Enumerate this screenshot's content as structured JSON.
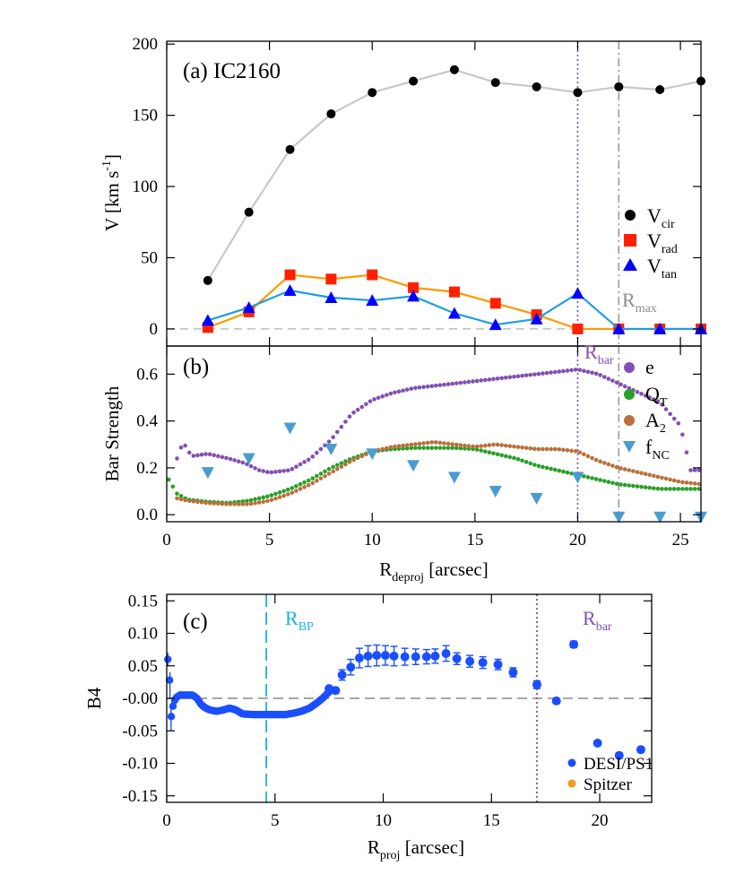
{
  "colors": {
    "black": "#000000",
    "gray_line": "#c8c8c8",
    "red": "#ff2000",
    "orange": "#ff9900",
    "blue": "#0000ff",
    "cyan": "#1e9be8",
    "purple": "#8250b4",
    "green": "#28a028",
    "brown": "#b8703c",
    "skyblue": "#4a9cd0",
    "desi": "#1a4fff",
    "spitzer": "#f29a1c",
    "ref_gray": "#9a9a9a",
    "rbp": "#1ab0e8",
    "rmax_text": "#8c8c8c"
  },
  "chart_data": [
    {
      "type": "line",
      "panel_label": "(a) IC2160",
      "ylabel": {
        "main": "V [km s",
        "sup": "-1",
        "end": "]"
      },
      "xlim": [
        0,
        26
      ],
      "ylim": [
        -12,
        202
      ],
      "yticks": [
        "0",
        "50",
        "100",
        "150",
        "200"
      ],
      "ytick_values": [
        0,
        50,
        100,
        150,
        200
      ],
      "x": [
        2,
        4,
        6,
        8,
        10,
        12,
        14,
        16,
        18,
        20,
        22,
        24,
        26
      ],
      "series": [
        {
          "name": "V",
          "sub": "cir",
          "marker": "circle",
          "values": [
            34,
            82,
            126,
            151,
            166,
            174,
            182,
            173,
            170,
            166,
            170,
            168,
            174
          ]
        },
        {
          "name": "V",
          "sub": "rad",
          "marker": "square",
          "values": [
            1,
            12,
            38,
            35,
            38,
            29,
            26,
            18,
            10,
            0,
            0,
            0,
            0
          ]
        },
        {
          "name": "V",
          "sub": "tan",
          "marker": "triangle",
          "values": [
            6,
            15,
            27,
            22,
            20,
            23,
            11,
            3,
            7,
            25,
            0,
            0,
            0
          ]
        }
      ],
      "vlines": [
        {
          "x": 20,
          "style": "dotted",
          "color": "purple"
        },
        {
          "x": 22,
          "style": "dashdot",
          "color": "ref_gray"
        }
      ],
      "annotation": {
        "main": "R",
        "sub": "max"
      }
    },
    {
      "type": "scatter",
      "panel_label": "(b)",
      "ylabel": "Bar Strength",
      "xlabel": {
        "main": "R",
        "sub": "deproj",
        "end": " [arcsec]"
      },
      "xlim": [
        0,
        26
      ],
      "ylim": [
        -0.03,
        0.72
      ],
      "xticks": [
        "0",
        "5",
        "10",
        "15",
        "20",
        "25"
      ],
      "xtick_values": [
        0,
        5,
        10,
        15,
        20,
        25
      ],
      "yticks": [
        "0.0",
        "0.2",
        "0.4",
        "0.6"
      ],
      "ytick_values": [
        0,
        0.2,
        0.4,
        0.6
      ],
      "legend": [
        {
          "main": "e",
          "sub": ""
        },
        {
          "main": "Q",
          "sub": "T"
        },
        {
          "main": "A",
          "sub": "2"
        },
        {
          "main": "f",
          "sub": "NC"
        }
      ],
      "e_curve": [
        [
          0.5,
          0.24
        ],
        [
          0.8,
          0.31
        ],
        [
          1.2,
          0.25
        ],
        [
          2,
          0.26
        ],
        [
          3,
          0.24
        ],
        [
          3.8,
          0.22
        ],
        [
          4.5,
          0.19
        ],
        [
          5,
          0.18
        ],
        [
          6,
          0.19
        ],
        [
          7,
          0.24
        ],
        [
          8,
          0.32
        ],
        [
          9,
          0.43
        ],
        [
          10,
          0.49
        ],
        [
          11,
          0.52
        ],
        [
          12,
          0.54
        ],
        [
          14,
          0.56
        ],
        [
          16,
          0.58
        ],
        [
          18,
          0.6
        ],
        [
          19,
          0.61
        ],
        [
          20,
          0.62
        ],
        [
          21,
          0.6
        ],
        [
          22,
          0.56
        ],
        [
          23,
          0.52
        ],
        [
          24,
          0.48
        ],
        [
          25,
          0.38
        ],
        [
          25.5,
          0.19
        ],
        [
          26,
          0.19
        ]
      ],
      "qt_curve": [
        [
          0.1,
          0.15
        ],
        [
          0.5,
          0.09
        ],
        [
          1,
          0.065
        ],
        [
          2,
          0.055
        ],
        [
          3,
          0.05
        ],
        [
          4,
          0.06
        ],
        [
          5,
          0.08
        ],
        [
          6,
          0.11
        ],
        [
          7,
          0.15
        ],
        [
          8,
          0.2
        ],
        [
          9,
          0.24
        ],
        [
          10,
          0.27
        ],
        [
          11,
          0.28
        ],
        [
          12,
          0.285
        ],
        [
          13,
          0.285
        ],
        [
          14,
          0.285
        ],
        [
          15,
          0.28
        ],
        [
          16,
          0.26
        ],
        [
          17,
          0.24
        ],
        [
          18,
          0.21
        ],
        [
          19,
          0.19
        ],
        [
          20,
          0.17
        ],
        [
          21,
          0.15
        ],
        [
          22,
          0.13
        ],
        [
          23,
          0.12
        ],
        [
          24,
          0.11
        ],
        [
          25,
          0.11
        ],
        [
          26,
          0.11
        ]
      ],
      "a2_curve": [
        [
          0.5,
          0.07
        ],
        [
          1,
          0.06
        ],
        [
          2,
          0.05
        ],
        [
          3,
          0.045
        ],
        [
          4,
          0.045
        ],
        [
          5,
          0.06
        ],
        [
          6,
          0.09
        ],
        [
          7,
          0.13
        ],
        [
          8,
          0.18
        ],
        [
          9,
          0.23
        ],
        [
          10,
          0.27
        ],
        [
          11,
          0.29
        ],
        [
          12,
          0.3
        ],
        [
          13,
          0.31
        ],
        [
          14,
          0.3
        ],
        [
          15,
          0.29
        ],
        [
          16,
          0.3
        ],
        [
          17,
          0.29
        ],
        [
          18,
          0.28
        ],
        [
          19,
          0.28
        ],
        [
          20,
          0.27
        ],
        [
          21,
          0.23
        ],
        [
          22,
          0.2
        ],
        [
          23,
          0.18
        ],
        [
          24,
          0.16
        ],
        [
          25,
          0.14
        ],
        [
          26,
          0.13
        ]
      ],
      "fnc_points": [
        [
          2,
          0.18
        ],
        [
          4,
          0.24
        ],
        [
          6,
          0.37
        ],
        [
          8,
          0.28
        ],
        [
          10,
          0.26
        ],
        [
          12,
          0.21
        ],
        [
          14,
          0.16
        ],
        [
          16,
          0.1
        ],
        [
          18,
          0.07
        ],
        [
          20,
          0.16
        ],
        [
          22,
          -0.01
        ],
        [
          24,
          -0.01
        ],
        [
          26,
          -0.01
        ]
      ],
      "vlines": [
        {
          "x": 20,
          "style": "dotted",
          "color": "purple"
        },
        {
          "x": 22,
          "style": "dashdot",
          "color": "ref_gray"
        }
      ],
      "annotation": {
        "main": "R",
        "sub": "bar"
      }
    },
    {
      "type": "scatter",
      "panel_label": "(c)",
      "ylabel": "B4",
      "xlabel": {
        "main": "R",
        "sub": "proj",
        "end": " [arcsec]"
      },
      "xlim": [
        0,
        22.4
      ],
      "ylim": [
        -0.16,
        0.16
      ],
      "xticks": [
        "0",
        "5",
        "10",
        "15",
        "20"
      ],
      "xtick_values": [
        0,
        5,
        10,
        15,
        20
      ],
      "yticks": [
        "0.15",
        "0.10",
        "0.05",
        "-0.00",
        "-0.05",
        "-0.10",
        "-0.15"
      ],
      "ytick_values": [
        0.15,
        0.1,
        0.05,
        0,
        -0.05,
        -0.1,
        -0.15
      ],
      "legend": [
        {
          "name": "DESI/PS1",
          "color": "desi"
        },
        {
          "name": "Spitzer",
          "color": "spitzer"
        }
      ],
      "inner_curve": [
        [
          0.05,
          0.06
        ],
        [
          0.1,
          0.04
        ],
        [
          0.15,
          0.02
        ],
        [
          0.2,
          -0.03
        ],
        [
          0.3,
          -0.01
        ],
        [
          0.4,
          0.0
        ],
        [
          0.6,
          0.005
        ],
        [
          0.8,
          0.005
        ],
        [
          1.0,
          0.005
        ],
        [
          1.2,
          0.005
        ],
        [
          1.4,
          0.0
        ],
        [
          1.6,
          -0.01
        ],
        [
          1.8,
          -0.015
        ],
        [
          2.0,
          -0.018
        ],
        [
          2.3,
          -0.02
        ],
        [
          2.6,
          -0.018
        ],
        [
          2.9,
          -0.015
        ],
        [
          3.2,
          -0.018
        ],
        [
          3.5,
          -0.024
        ],
        [
          4.0,
          -0.025
        ],
        [
          4.5,
          -0.025
        ],
        [
          5.0,
          -0.025
        ],
        [
          5.5,
          -0.025
        ],
        [
          6.0,
          -0.022
        ],
        [
          6.3,
          -0.019
        ],
        [
          6.6,
          -0.015
        ],
        [
          6.9,
          -0.008
        ],
        [
          7.2,
          0.0
        ],
        [
          7.5,
          0.01
        ]
      ],
      "points": [
        [
          7.5,
          0.015,
          0.003
        ],
        [
          7.8,
          0.012,
          0.004
        ],
        [
          8.1,
          0.036,
          0.008
        ],
        [
          8.5,
          0.048,
          0.012
        ],
        [
          8.9,
          0.062,
          0.015
        ],
        [
          9.3,
          0.065,
          0.016
        ],
        [
          9.7,
          0.066,
          0.016
        ],
        [
          10.1,
          0.066,
          0.015
        ],
        [
          10.5,
          0.065,
          0.015
        ],
        [
          11.0,
          0.064,
          0.013
        ],
        [
          11.5,
          0.064,
          0.012
        ],
        [
          12.0,
          0.064,
          0.011
        ],
        [
          12.4,
          0.065,
          0.011
        ],
        [
          12.9,
          0.069,
          0.012
        ],
        [
          13.4,
          0.061,
          0.009
        ],
        [
          14.0,
          0.057,
          0.009
        ],
        [
          14.6,
          0.055,
          0.009
        ],
        [
          15.3,
          0.052,
          0.008
        ],
        [
          16.0,
          0.04,
          0.007
        ],
        [
          17.1,
          0.021,
          0.006
        ],
        [
          18.0,
          -0.004,
          0.004
        ],
        [
          18.8,
          0.083,
          0.005
        ],
        [
          19.9,
          -0.069,
          0.003
        ],
        [
          20.9,
          -0.088,
          0.004
        ],
        [
          21.9,
          -0.079,
          0.004
        ]
      ],
      "vlines": [
        {
          "x": 4.6,
          "style": "longdash",
          "color": "rbp"
        },
        {
          "x": 17.1,
          "style": "dotted",
          "color": "purple"
        }
      ],
      "annotations": [
        {
          "main": "R",
          "sub": "BP"
        },
        {
          "main": "R",
          "sub": "bar"
        }
      ]
    }
  ]
}
